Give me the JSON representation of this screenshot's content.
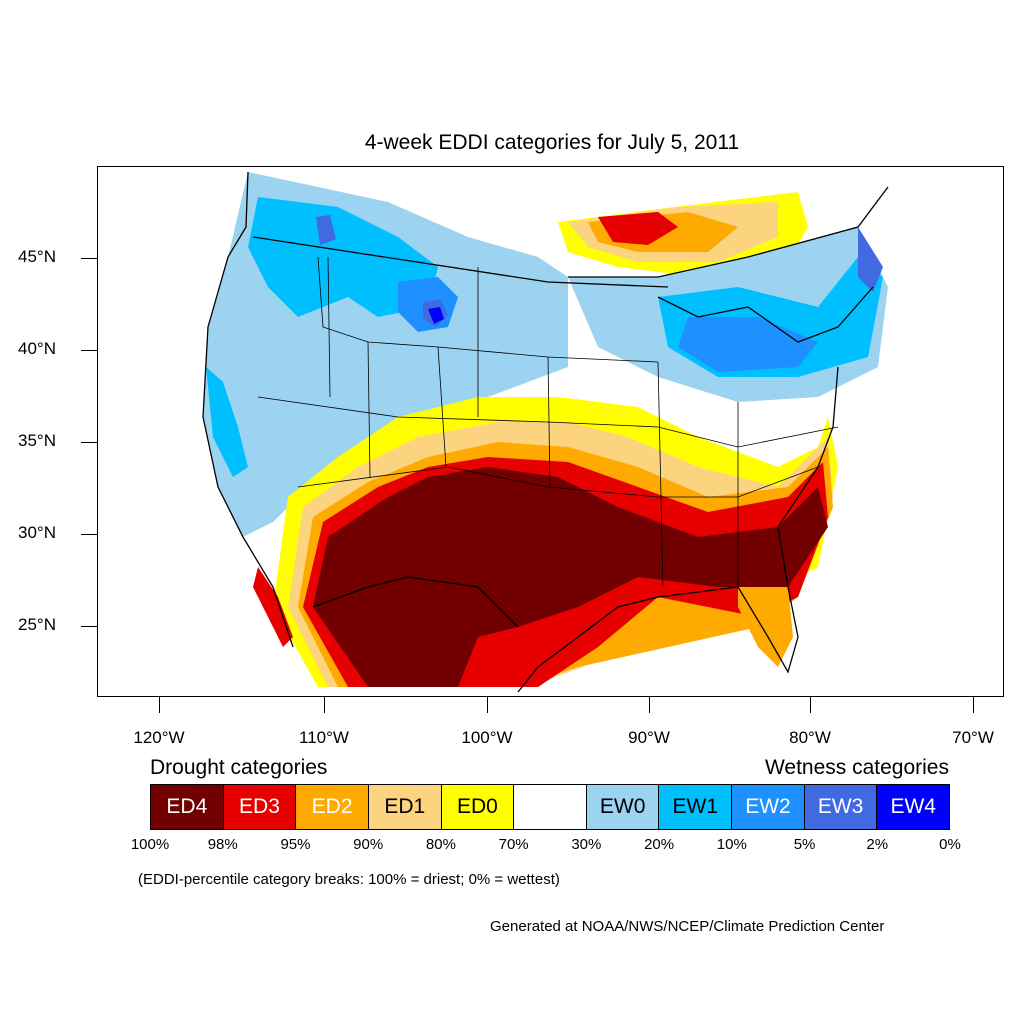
{
  "title": "4-week EDDI categories for July 5, 2011",
  "lat_labels": [
    "45°N",
    "40°N",
    "35°N",
    "30°N",
    "25°N"
  ],
  "lon_labels": [
    "120°W",
    "110°W",
    "100°W",
    "90°W",
    "80°W",
    "70°W"
  ],
  "legend": {
    "drought_heading": "Drought categories",
    "wetness_heading": "Wetness categories",
    "categories": [
      {
        "label": "ED4",
        "color": "#730000",
        "text_color": "#ffffff"
      },
      {
        "label": "ED3",
        "color": "#e60000",
        "text_color": "#ffffff"
      },
      {
        "label": "ED2",
        "color": "#ffaa00",
        "text_color": "#ffffff"
      },
      {
        "label": "ED1",
        "color": "#fcd37f",
        "text_color": "#000000"
      },
      {
        "label": "ED0",
        "color": "#ffff00",
        "text_color": "#000000"
      },
      {
        "label": "",
        "color": "#ffffff",
        "text_color": "#000000"
      },
      {
        "label": "EW0",
        "color": "#9bd3f0",
        "text_color": "#000000"
      },
      {
        "label": "EW1",
        "color": "#00bfff",
        "text_color": "#000000"
      },
      {
        "label": "EW2",
        "color": "#1e90ff",
        "text_color": "#ffffff"
      },
      {
        "label": "EW3",
        "color": "#4169e1",
        "text_color": "#ffffff"
      },
      {
        "label": "EW4",
        "color": "#0000ff",
        "text_color": "#ffffff"
      }
    ],
    "percentiles": [
      "100%",
      "98%",
      "95%",
      "90%",
      "80%",
      "70%",
      "30%",
      "20%",
      "10%",
      "5%",
      "2%",
      "0%"
    ],
    "note": "(EDDI-percentile category breaks: 100% = driest; 0% = wettest)"
  },
  "credit": "Generated at NOAA/NWS/NCEP/Climate Prediction Center"
}
